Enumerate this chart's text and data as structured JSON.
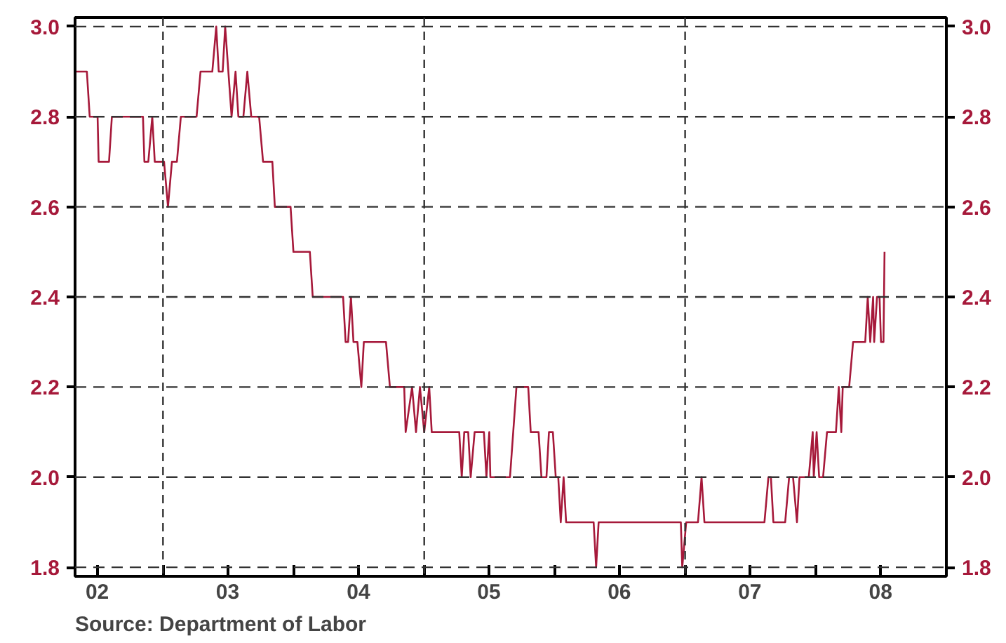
{
  "chart_data": {
    "type": "line",
    "x": [
      "2002-04-30",
      "2002-06-02",
      "2002-06-10",
      "2002-07-02",
      "2002-07-05",
      "2002-08-03",
      "2002-08-11",
      "2002-11-06",
      "2002-11-10",
      "2002-11-21",
      "2002-12-02",
      "2002-12-09",
      "2003-01-04",
      "2003-01-15",
      "2003-01-26",
      "2003-02-09",
      "2003-02-20",
      "2003-04-05",
      "2003-04-16",
      "2003-05-19",
      "2003-05-30",
      "2003-06-06",
      "2003-06-17",
      "2003-06-24",
      "2003-07-12",
      "2003-07-23",
      "2003-07-31",
      "2003-08-14",
      "2003-08-25",
      "2003-09-05",
      "2003-09-27",
      "2003-10-08",
      "2003-11-03",
      "2003-11-10",
      "2003-12-24",
      "2004-01-01",
      "2004-02-16",
      "2004-02-24",
      "2004-05-19",
      "2004-05-26",
      "2004-06-02",
      "2004-06-10",
      "2004-06-17",
      "2004-06-28",
      "2004-07-09",
      "2004-07-16",
      "2004-09-16",
      "2004-09-27",
      "2004-11-06",
      "2004-11-10",
      "2004-11-28",
      "2004-12-09",
      "2004-12-20",
      "2005-01-01",
      "2005-01-15",
      "2005-01-22",
      "2005-04-09",
      "2005-04-16",
      "2005-04-23",
      "2005-05-04",
      "2005-05-11",
      "2005-05-22",
      "2005-06-17",
      "2005-06-24",
      "2005-07-02",
      "2005-07-05",
      "2005-08-29",
      "2005-09-16",
      "2005-10-19",
      "2005-10-26",
      "2005-11-17",
      "2005-11-25",
      "2005-12-09",
      "2005-12-16",
      "2005-12-27",
      "2006-01-04",
      "2006-01-11",
      "2006-01-18",
      "2006-01-26",
      "2006-02-02",
      "2006-04-20",
      "2006-04-27",
      "2006-05-04",
      "2006-12-20",
      "2006-12-24",
      "2007-01-04",
      "2007-02-06",
      "2007-02-16",
      "2007-02-24",
      "2007-08-11",
      "2007-08-22",
      "2007-08-29",
      "2007-09-05",
      "2007-10-08",
      "2007-10-19",
      "2007-10-30",
      "2007-11-10",
      "2007-11-17",
      "2007-12-13",
      "2007-12-24",
      "2007-12-27",
      "2008-01-04",
      "2008-01-11",
      "2008-01-22",
      "2008-02-02",
      "2008-02-27",
      "2008-03-06",
      "2008-03-13",
      "2008-03-17",
      "2008-04-04",
      "2008-04-15",
      "2008-05-19",
      "2008-05-26",
      "2008-06-02",
      "2008-06-10",
      "2008-06-13",
      "2008-06-21",
      "2008-06-28",
      "2008-07-02",
      "2008-07-09",
      "2008-07-12"
    ],
    "series": [
      {
        "color": "#a6193a",
        "values": [
          2.9,
          2.9,
          2.8,
          2.8,
          2.7,
          2.7,
          2.8,
          2.8,
          2.7,
          2.7,
          2.8,
          2.7,
          2.7,
          2.6,
          2.7,
          2.7,
          2.8,
          2.8,
          2.9,
          2.9,
          3.0,
          2.9,
          2.9,
          3.0,
          2.8,
          2.9,
          2.8,
          2.8,
          2.9,
          2.8,
          2.8,
          2.7,
          2.7,
          2.6,
          2.6,
          2.5,
          2.5,
          2.4,
          2.4,
          2.3,
          2.3,
          2.4,
          2.3,
          2.3,
          2.2,
          2.3,
          2.3,
          2.2,
          2.2,
          2.1,
          2.2,
          2.1,
          2.2,
          2.1,
          2.2,
          2.1,
          2.1,
          2.0,
          2.1,
          2.1,
          2.0,
          2.1,
          2.1,
          2.0,
          2.1,
          2.0,
          2.0,
          2.2,
          2.2,
          2.1,
          2.1,
          2.0,
          2.0,
          2.1,
          2.1,
          2.0,
          2.0,
          1.9,
          2.0,
          1.9,
          1.9,
          1.8,
          1.9,
          1.9,
          1.8,
          1.9,
          1.9,
          2.0,
          1.9,
          1.9,
          2.0,
          2.0,
          1.9,
          1.9,
          2.0,
          2.0,
          1.9,
          2.0,
          2.0,
          2.1,
          2.0,
          2.1,
          2.0,
          2.0,
          2.1,
          2.1,
          2.2,
          2.1,
          2.2,
          2.2,
          2.3,
          2.3,
          2.4,
          2.3,
          2.4,
          2.3,
          2.4,
          2.4,
          2.3,
          2.3,
          2.5
        ]
      }
    ],
    "xlim": [
      "2002-04-30",
      "2009-01-01"
    ],
    "xticks": [
      {
        "value": "2002-07-01",
        "label": "02"
      },
      {
        "value": "2003-01-01",
        "label": null
      },
      {
        "value": "2003-07-01",
        "label": "03"
      },
      {
        "value": "2004-01-01",
        "label": null
      },
      {
        "value": "2004-07-01",
        "label": "04"
      },
      {
        "value": "2005-01-01",
        "label": null
      },
      {
        "value": "2005-07-01",
        "label": "05"
      },
      {
        "value": "2006-01-01",
        "label": null
      },
      {
        "value": "2006-07-01",
        "label": "06"
      },
      {
        "value": "2007-01-01",
        "label": null
      },
      {
        "value": "2007-07-01",
        "label": "07"
      },
      {
        "value": "2008-01-01",
        "label": null
      },
      {
        "value": "2008-07-01",
        "label": "08"
      },
      {
        "value": "2009-01-01",
        "label": null
      }
    ],
    "ylim": [
      1.78,
      3.02
    ],
    "yticks": [
      {
        "value": 1.8,
        "label": "1.8"
      },
      {
        "value": 2.0,
        "label": "2.0"
      },
      {
        "value": 2.2,
        "label": "2.2"
      },
      {
        "value": 2.4,
        "label": "2.4"
      },
      {
        "value": 2.6,
        "label": "2.6"
      },
      {
        "value": 2.8,
        "label": "2.8"
      },
      {
        "value": 3.0,
        "label": "3.0"
      }
    ],
    "y2lim": [
      1.78,
      3.02
    ],
    "y2ticks": [
      {
        "value": 1.8,
        "label": "1.8"
      },
      {
        "value": 2.0,
        "label": "2.0"
      },
      {
        "value": 2.2,
        "label": "2.2"
      },
      {
        "value": 2.4,
        "label": "2.4"
      },
      {
        "value": 2.6,
        "label": "2.6"
      },
      {
        "value": 2.8,
        "label": "2.8"
      },
      {
        "value": 3.0,
        "label": "3.0"
      }
    ],
    "grid": "y",
    "ref_lines": [
      {
        "axis": "x",
        "value": "2003-01-01",
        "color": "#333333",
        "line_style": "dashed"
      },
      {
        "axis": "x",
        "value": "2005-01-01",
        "color": "#333333",
        "line_style": "dashed"
      },
      {
        "axis": "x",
        "value": "2007-01-01",
        "color": "#333333",
        "line_style": "dashed"
      }
    ],
    "annotations": [
      "Source:  Department of Labor"
    ],
    "line_style": "solid"
  }
}
